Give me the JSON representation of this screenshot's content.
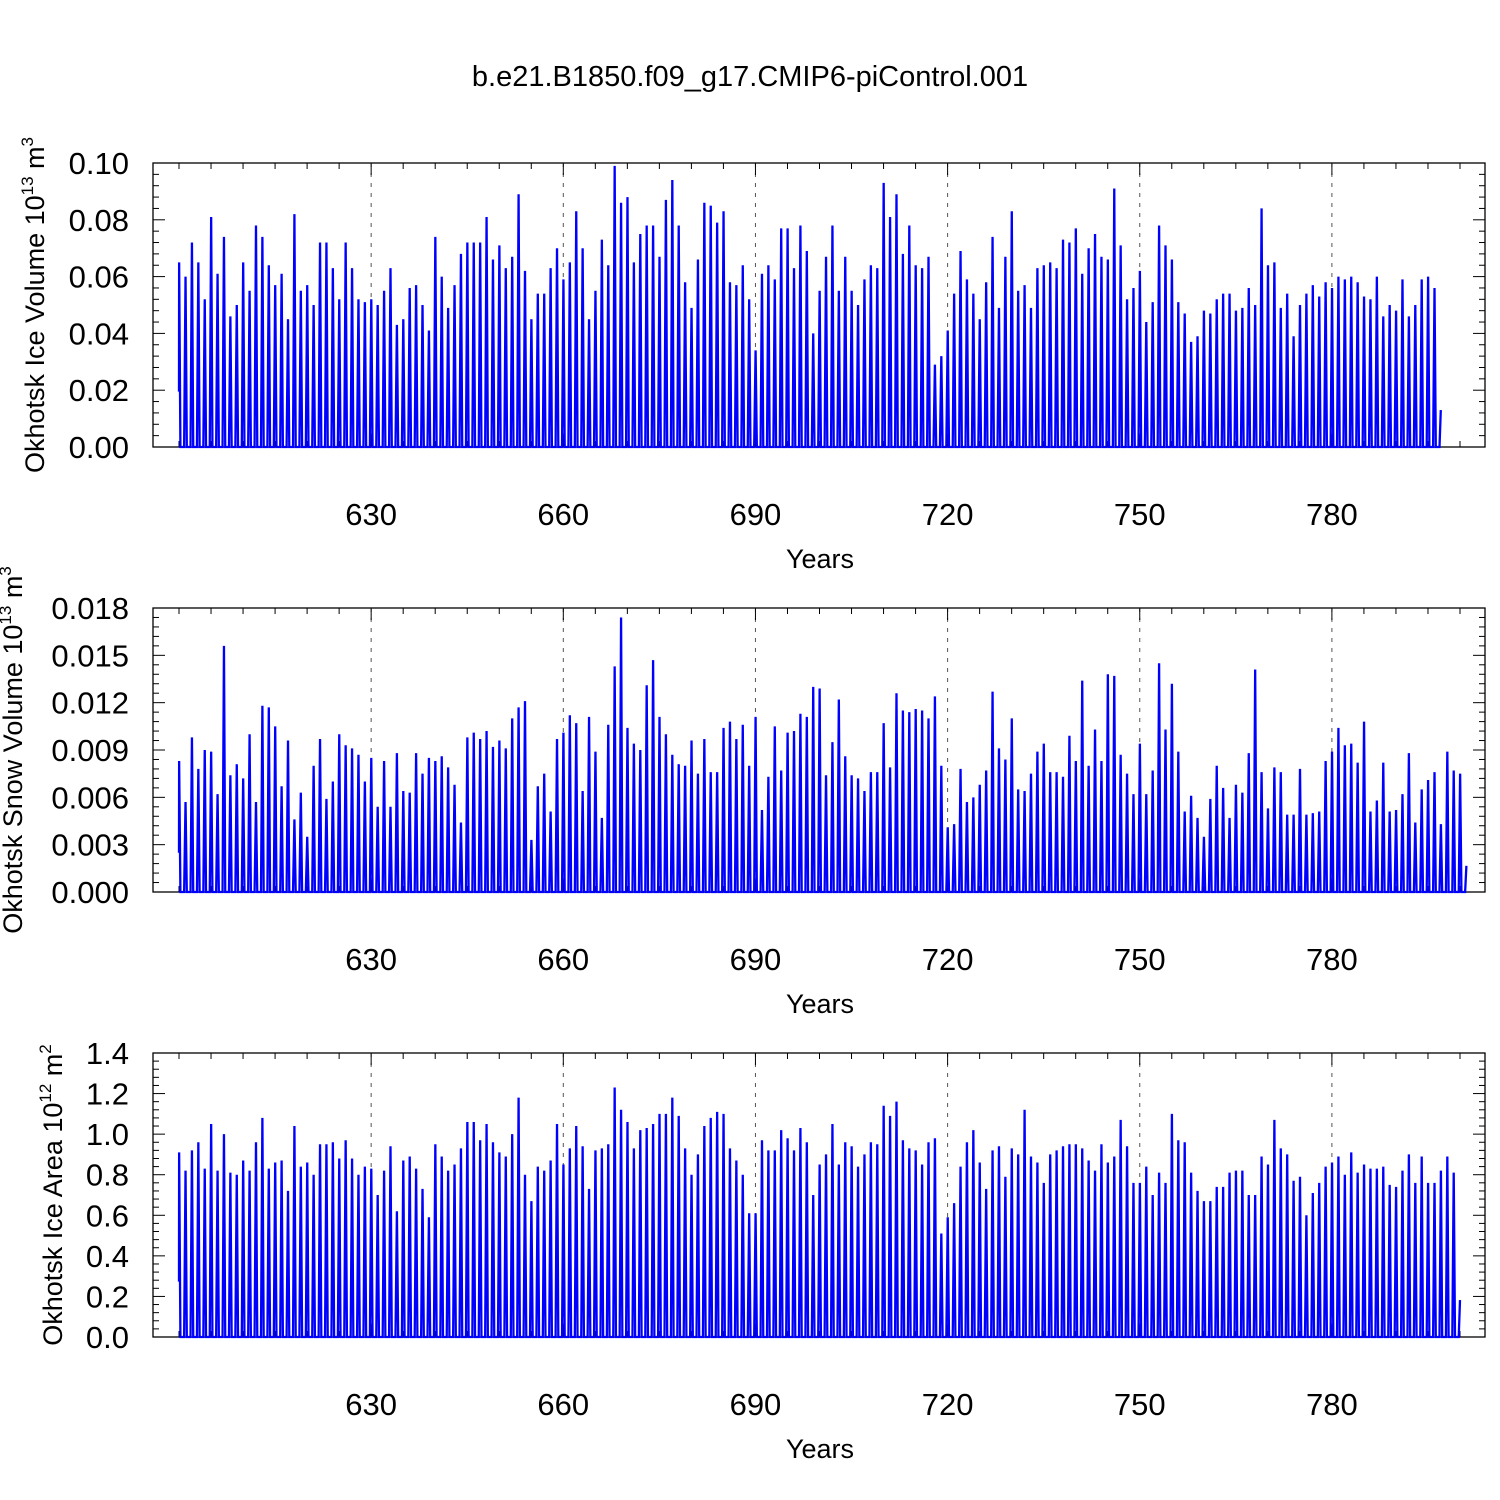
{
  "figure_title": "b.e21.B1850.f09_g17.CMIP6-piControl.001",
  "colors": {
    "series": "#0000ff",
    "axis": "#000000",
    "grid": "#555555",
    "background": "#ffffff"
  },
  "chart_data": [
    {
      "type": "line",
      "ylabel": "Okhotsk Ice Volume 10",
      "ylabel_sup": "13",
      "ylabel_unit": " m",
      "ylabel_unit_sup": "3",
      "xlabel": "Years",
      "xlim": [
        600,
        800
      ],
      "ylim": [
        0,
        0.1
      ],
      "xticks": [
        630,
        660,
        690,
        720,
        750,
        780
      ],
      "xtick_labels": [
        "630",
        "660",
        "690",
        "720",
        "750",
        "780"
      ],
      "yticks": [
        0,
        0.02,
        0.04,
        0.06,
        0.08,
        0.1
      ],
      "ytick_labels": [
        "0.00",
        "0.02",
        "0.04",
        "0.06",
        "0.08",
        "0.10"
      ],
      "grid": "vertical dashed at major x ticks",
      "series": [
        {
          "seasonal_minimum": 0,
          "years_start": 600,
          "annual_peaks": [
            0.065,
            0.06,
            0.072,
            0.065,
            0.052,
            0.081,
            0.061,
            0.074,
            0.046,
            0.05,
            0.065,
            0.055,
            0.078,
            0.074,
            0.064,
            0.057,
            0.061,
            0.045,
            0.082,
            0.055,
            0.057,
            0.05,
            0.072,
            0.072,
            0.063,
            0.052,
            0.072,
            0.063,
            0.052,
            0.051,
            0.052,
            0.05,
            0.055,
            0.063,
            0.043,
            0.045,
            0.056,
            0.057,
            0.05,
            0.041,
            0.074,
            0.06,
            0.049,
            0.057,
            0.068,
            0.072,
            0.072,
            0.072,
            0.081,
            0.066,
            0.071,
            0.063,
            0.067,
            0.089,
            0.062,
            0.045,
            0.054,
            0.054,
            0.063,
            0.07,
            0.059,
            0.065,
            0.083,
            0.07,
            0.045,
            0.055,
            0.073,
            0.064,
            0.099,
            0.086,
            0.088,
            0.065,
            0.075,
            0.078,
            0.078,
            0.067,
            0.087,
            0.094,
            0.078,
            0.058,
            0.049,
            0.066,
            0.086,
            0.085,
            0.079,
            0.083,
            0.058,
            0.057,
            0.064,
            0.052,
            0.034,
            0.061,
            0.064,
            0.059,
            0.077,
            0.077,
            0.063,
            0.078,
            0.069,
            0.04,
            0.055,
            0.067,
            0.078,
            0.055,
            0.067,
            0.055,
            0.05,
            0.059,
            0.064,
            0.063,
            0.093,
            0.081,
            0.089,
            0.068,
            0.078,
            0.064,
            0.063,
            0.067,
            0.029,
            0.032,
            0.041,
            0.054,
            0.069,
            0.059,
            0.054,
            0.045,
            0.058,
            0.074,
            0.049,
            0.067,
            0.083,
            0.055,
            0.057,
            0.049,
            0.063,
            0.064,
            0.065,
            0.063,
            0.073,
            0.072,
            0.077,
            0.061,
            0.07,
            0.075,
            0.067,
            0.066,
            0.091,
            0.071,
            0.052,
            0.056,
            0.062,
            0.044,
            0.051,
            0.078,
            0.071,
            0.066,
            0.051,
            0.047,
            0.037,
            0.039,
            0.048,
            0.047,
            0.052,
            0.054,
            0.054,
            0.048,
            0.049,
            0.056,
            0.05,
            0.084,
            0.064,
            0.065,
            0.049,
            0.054,
            0.039,
            0.05,
            0.054,
            0.057,
            0.053,
            0.058,
            0.056,
            0.06,
            0.059,
            0.06,
            0.058,
            0.053,
            0.052,
            0.06,
            0.046,
            0.05,
            0.048,
            0.059,
            0.046,
            0.05,
            0.059,
            0.06,
            0.056
          ]
        }
      ]
    },
    {
      "type": "line",
      "ylabel": "Okhotsk Snow Volume 10",
      "ylabel_sup": "13",
      "ylabel_unit": " m",
      "ylabel_unit_sup": "3",
      "xlabel": "Years",
      "xlim": [
        600,
        800
      ],
      "ylim": [
        0,
        0.018
      ],
      "xticks": [
        630,
        660,
        690,
        720,
        750,
        780
      ],
      "xtick_labels": [
        "630",
        "660",
        "690",
        "720",
        "750",
        "780"
      ],
      "yticks": [
        0,
        0.003,
        0.006,
        0.009,
        0.012,
        0.015,
        0.018
      ],
      "ytick_labels": [
        "0.000",
        "0.003",
        "0.006",
        "0.009",
        "0.012",
        "0.015",
        "0.018"
      ],
      "grid": "vertical dashed at major x ticks",
      "series": [
        {
          "seasonal_minimum": 0,
          "years_start": 600,
          "annual_peaks": [
            0.0083,
            0.0057,
            0.0098,
            0.0078,
            0.009,
            0.0089,
            0.0062,
            0.0156,
            0.0074,
            0.0081,
            0.0072,
            0.01,
            0.0057,
            0.0118,
            0.0117,
            0.0105,
            0.0067,
            0.0096,
            0.0046,
            0.0063,
            0.0035,
            0.008,
            0.0097,
            0.0059,
            0.007,
            0.01,
            0.0093,
            0.0091,
            0.0087,
            0.007,
            0.0085,
            0.0054,
            0.0083,
            0.0054,
            0.0088,
            0.0064,
            0.0063,
            0.0088,
            0.0075,
            0.0085,
            0.0083,
            0.0086,
            0.0079,
            0.0068,
            0.0044,
            0.0098,
            0.0101,
            0.0097,
            0.0102,
            0.0092,
            0.0096,
            0.0091,
            0.011,
            0.0117,
            0.0121,
            0.0033,
            0.0067,
            0.0075,
            0.0051,
            0.0097,
            0.0101,
            0.0112,
            0.0107,
            0.0064,
            0.0111,
            0.0089,
            0.0047,
            0.0106,
            0.0143,
            0.0174,
            0.0104,
            0.0094,
            0.009,
            0.0131,
            0.0147,
            0.0111,
            0.01,
            0.0087,
            0.0081,
            0.008,
            0.0096,
            0.0075,
            0.0097,
            0.0076,
            0.0076,
            0.0104,
            0.0108,
            0.0097,
            0.0106,
            0.008,
            0.0111,
            0.0052,
            0.0073,
            0.0105,
            0.0077,
            0.0101,
            0.0102,
            0.0113,
            0.0111,
            0.013,
            0.0129,
            0.0074,
            0.0095,
            0.0122,
            0.0086,
            0.0074,
            0.0072,
            0.0064,
            0.0076,
            0.0076,
            0.0107,
            0.0079,
            0.0126,
            0.0115,
            0.0114,
            0.0116,
            0.0115,
            0.011,
            0.0124,
            0.008,
            0.0041,
            0.0043,
            0.0078,
            0.0057,
            0.006,
            0.0068,
            0.0077,
            0.0127,
            0.0091,
            0.0084,
            0.011,
            0.0065,
            0.0064,
            0.0075,
            0.0089,
            0.0094,
            0.0076,
            0.0076,
            0.0073,
            0.0099,
            0.0083,
            0.0134,
            0.008,
            0.0103,
            0.0083,
            0.0138,
            0.0137,
            0.0087,
            0.0075,
            0.0062,
            0.0094,
            0.0062,
            0.0077,
            0.0145,
            0.0103,
            0.0132,
            0.0089,
            0.0051,
            0.0061,
            0.0047,
            0.0035,
            0.0059,
            0.008,
            0.0066,
            0.0047,
            0.0068,
            0.0063,
            0.0088,
            0.0141,
            0.0076,
            0.0053,
            0.0079,
            0.0076,
            0.0049,
            0.0049,
            0.0078,
            0.0049,
            0.005,
            0.0051,
            0.0083,
            0.0089,
            0.0104,
            0.0093,
            0.0094,
            0.0082,
            0.0108,
            0.0051,
            0.0058,
            0.0082,
            0.0051,
            0.0052,
            0.0062,
            0.0088,
            0.0044,
            0.0065,
            0.0071,
            0.0076,
            0.0043,
            0.0089,
            0.0077,
            0.0075
          ]
        }
      ]
    },
    {
      "type": "line",
      "ylabel": "Okhotsk Ice Area 10",
      "ylabel_sup": "12",
      "ylabel_unit": " m",
      "ylabel_unit_sup": "2",
      "xlabel": "Years",
      "xlim": [
        600,
        800
      ],
      "ylim": [
        0,
        1.4
      ],
      "xticks": [
        630,
        660,
        690,
        720,
        750,
        780
      ],
      "xtick_labels": [
        "630",
        "660",
        "690",
        "720",
        "750",
        "780"
      ],
      "yticks": [
        0,
        0.2,
        0.4,
        0.6,
        0.8,
        1.0,
        1.2,
        1.4
      ],
      "ytick_labels": [
        "0.0",
        "0.2",
        "0.4",
        "0.6",
        "0.8",
        "1.0",
        "1.2",
        "1.4"
      ],
      "grid": "vertical dashed at major x ticks",
      "series": [
        {
          "seasonal_minimum": 0,
          "years_start": 600,
          "annual_peaks": [
            0.91,
            0.82,
            0.92,
            0.96,
            0.83,
            1.05,
            0.82,
            1.0,
            0.81,
            0.8,
            0.87,
            0.82,
            0.96,
            1.08,
            0.83,
            0.86,
            0.87,
            0.72,
            1.04,
            0.84,
            0.86,
            0.8,
            0.95,
            0.95,
            0.96,
            0.88,
            0.97,
            0.88,
            0.8,
            0.84,
            0.83,
            0.7,
            0.82,
            0.94,
            0.62,
            0.87,
            0.89,
            0.83,
            0.73,
            0.59,
            0.95,
            0.89,
            0.82,
            0.85,
            0.93,
            1.06,
            1.06,
            0.97,
            1.05,
            0.96,
            0.91,
            0.89,
            1.0,
            1.18,
            0.8,
            0.67,
            0.84,
            0.82,
            0.87,
            1.05,
            0.85,
            0.93,
            1.04,
            0.94,
            0.73,
            0.92,
            0.93,
            0.95,
            1.23,
            1.12,
            1.06,
            0.93,
            1.02,
            1.03,
            1.05,
            1.1,
            1.1,
            1.18,
            1.09,
            0.93,
            0.8,
            0.9,
            1.04,
            1.08,
            1.11,
            1.1,
            0.93,
            0.87,
            0.8,
            0.61,
            0.61,
            0.97,
            0.92,
            0.92,
            1.02,
            0.98,
            0.92,
            1.03,
            0.96,
            0.7,
            0.85,
            0.9,
            1.05,
            0.85,
            0.96,
            0.94,
            0.84,
            0.9,
            0.96,
            0.95,
            1.14,
            1.09,
            1.16,
            0.97,
            0.93,
            0.92,
            0.85,
            0.96,
            0.98,
            0.51,
            0.59,
            0.66,
            0.84,
            0.96,
            1.02,
            0.86,
            0.73,
            0.92,
            0.94,
            0.79,
            0.93,
            0.9,
            1.12,
            0.89,
            0.86,
            0.76,
            0.9,
            0.92,
            0.94,
            0.95,
            0.95,
            0.93,
            0.87,
            0.82,
            0.95,
            0.86,
            0.89,
            1.07,
            0.94,
            0.76,
            0.76,
            0.84,
            0.7,
            0.81,
            0.76,
            1.1,
            0.97,
            0.96,
            0.81,
            0.72,
            0.67,
            0.67,
            0.74,
            0.74,
            0.81,
            0.82,
            0.82,
            0.7,
            0.7,
            0.89,
            0.85,
            1.07,
            0.93,
            0.9,
            0.77,
            0.79,
            0.6,
            0.71,
            0.76,
            0.84,
            0.86,
            0.89,
            0.8,
            0.91,
            0.81,
            0.85,
            0.83,
            0.83,
            0.84,
            0.75,
            0.74,
            0.82,
            0.9,
            0.76,
            0.89,
            0.76,
            0.76,
            0.82,
            0.89,
            0.81
          ]
        }
      ]
    }
  ]
}
